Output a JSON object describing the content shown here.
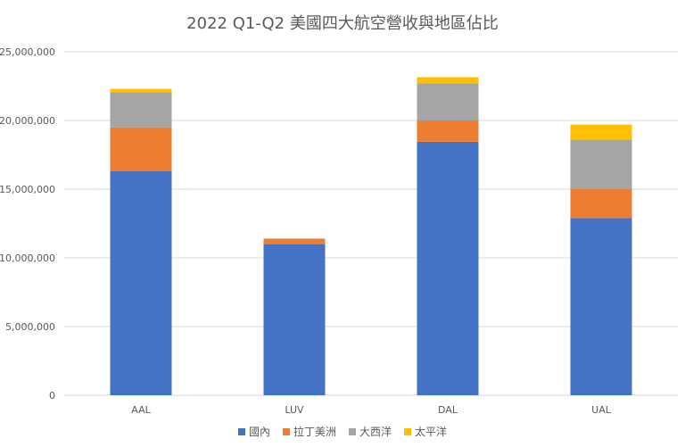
{
  "chart_data": {
    "type": "bar",
    "stacked": true,
    "title": "2022 Q1-Q2 美國四大航空營收與地區佔比",
    "categories": [
      "AAL",
      "LUV",
      "DAL",
      "UAL"
    ],
    "series": [
      {
        "name": "國內",
        "color": "#4472C4",
        "values": [
          16300000,
          11000000,
          18450000,
          12900000
        ]
      },
      {
        "name": "拉丁美洲",
        "color": "#ED7D31",
        "values": [
          3200000,
          400000,
          1550000,
          2100000
        ]
      },
      {
        "name": "大西洋",
        "color": "#A5A5A5",
        "values": [
          2550000,
          0,
          2700000,
          3600000
        ]
      },
      {
        "name": "太平洋",
        "color": "#FFC000",
        "values": [
          250000,
          0,
          450000,
          1100000
        ]
      }
    ],
    "y_ticks": [
      "0",
      "5,000,000",
      "10,000,000",
      "15,000,000",
      "20,000,000",
      "25,000,000"
    ],
    "ylim": [
      0,
      25000000
    ],
    "grid": true,
    "legend_position": "bottom",
    "gridline_color": "#D9D9D9",
    "axis_label_color": "#595959"
  }
}
